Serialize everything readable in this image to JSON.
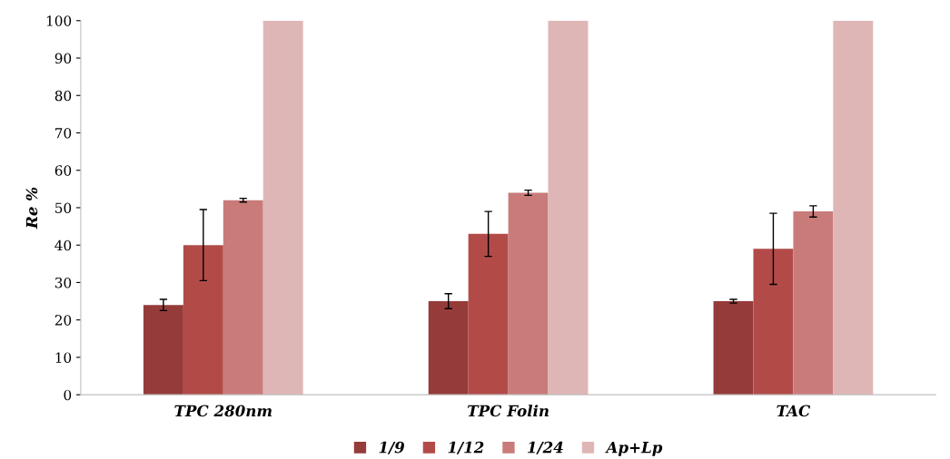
{
  "chart_data": {
    "type": "bar",
    "ylabel": "Re %",
    "categories": [
      "TPC 280nm",
      "TPC Folin",
      "TAC"
    ],
    "series": [
      {
        "name": "1/9",
        "color": "#953b3a",
        "values": [
          24,
          25,
          25
        ],
        "errors": [
          1.5,
          2,
          0.5
        ]
      },
      {
        "name": "1/12",
        "color": "#b24b48",
        "values": [
          40,
          43,
          39
        ],
        "errors": [
          9.5,
          6,
          9.5
        ]
      },
      {
        "name": "1/24",
        "color": "#c97b7a",
        "values": [
          52,
          54,
          49
        ],
        "errors": [
          0.5,
          0.7,
          1.5
        ]
      },
      {
        "name": "Ap+Lp",
        "color": "#dfb6b6",
        "values": [
          100,
          100,
          100
        ]
      }
    ],
    "ylim": [
      0,
      100
    ],
    "yticks": [
      0,
      10,
      20,
      30,
      40,
      50,
      60,
      70,
      80,
      90,
      100
    ],
    "grid": false,
    "legend": "bottom"
  }
}
